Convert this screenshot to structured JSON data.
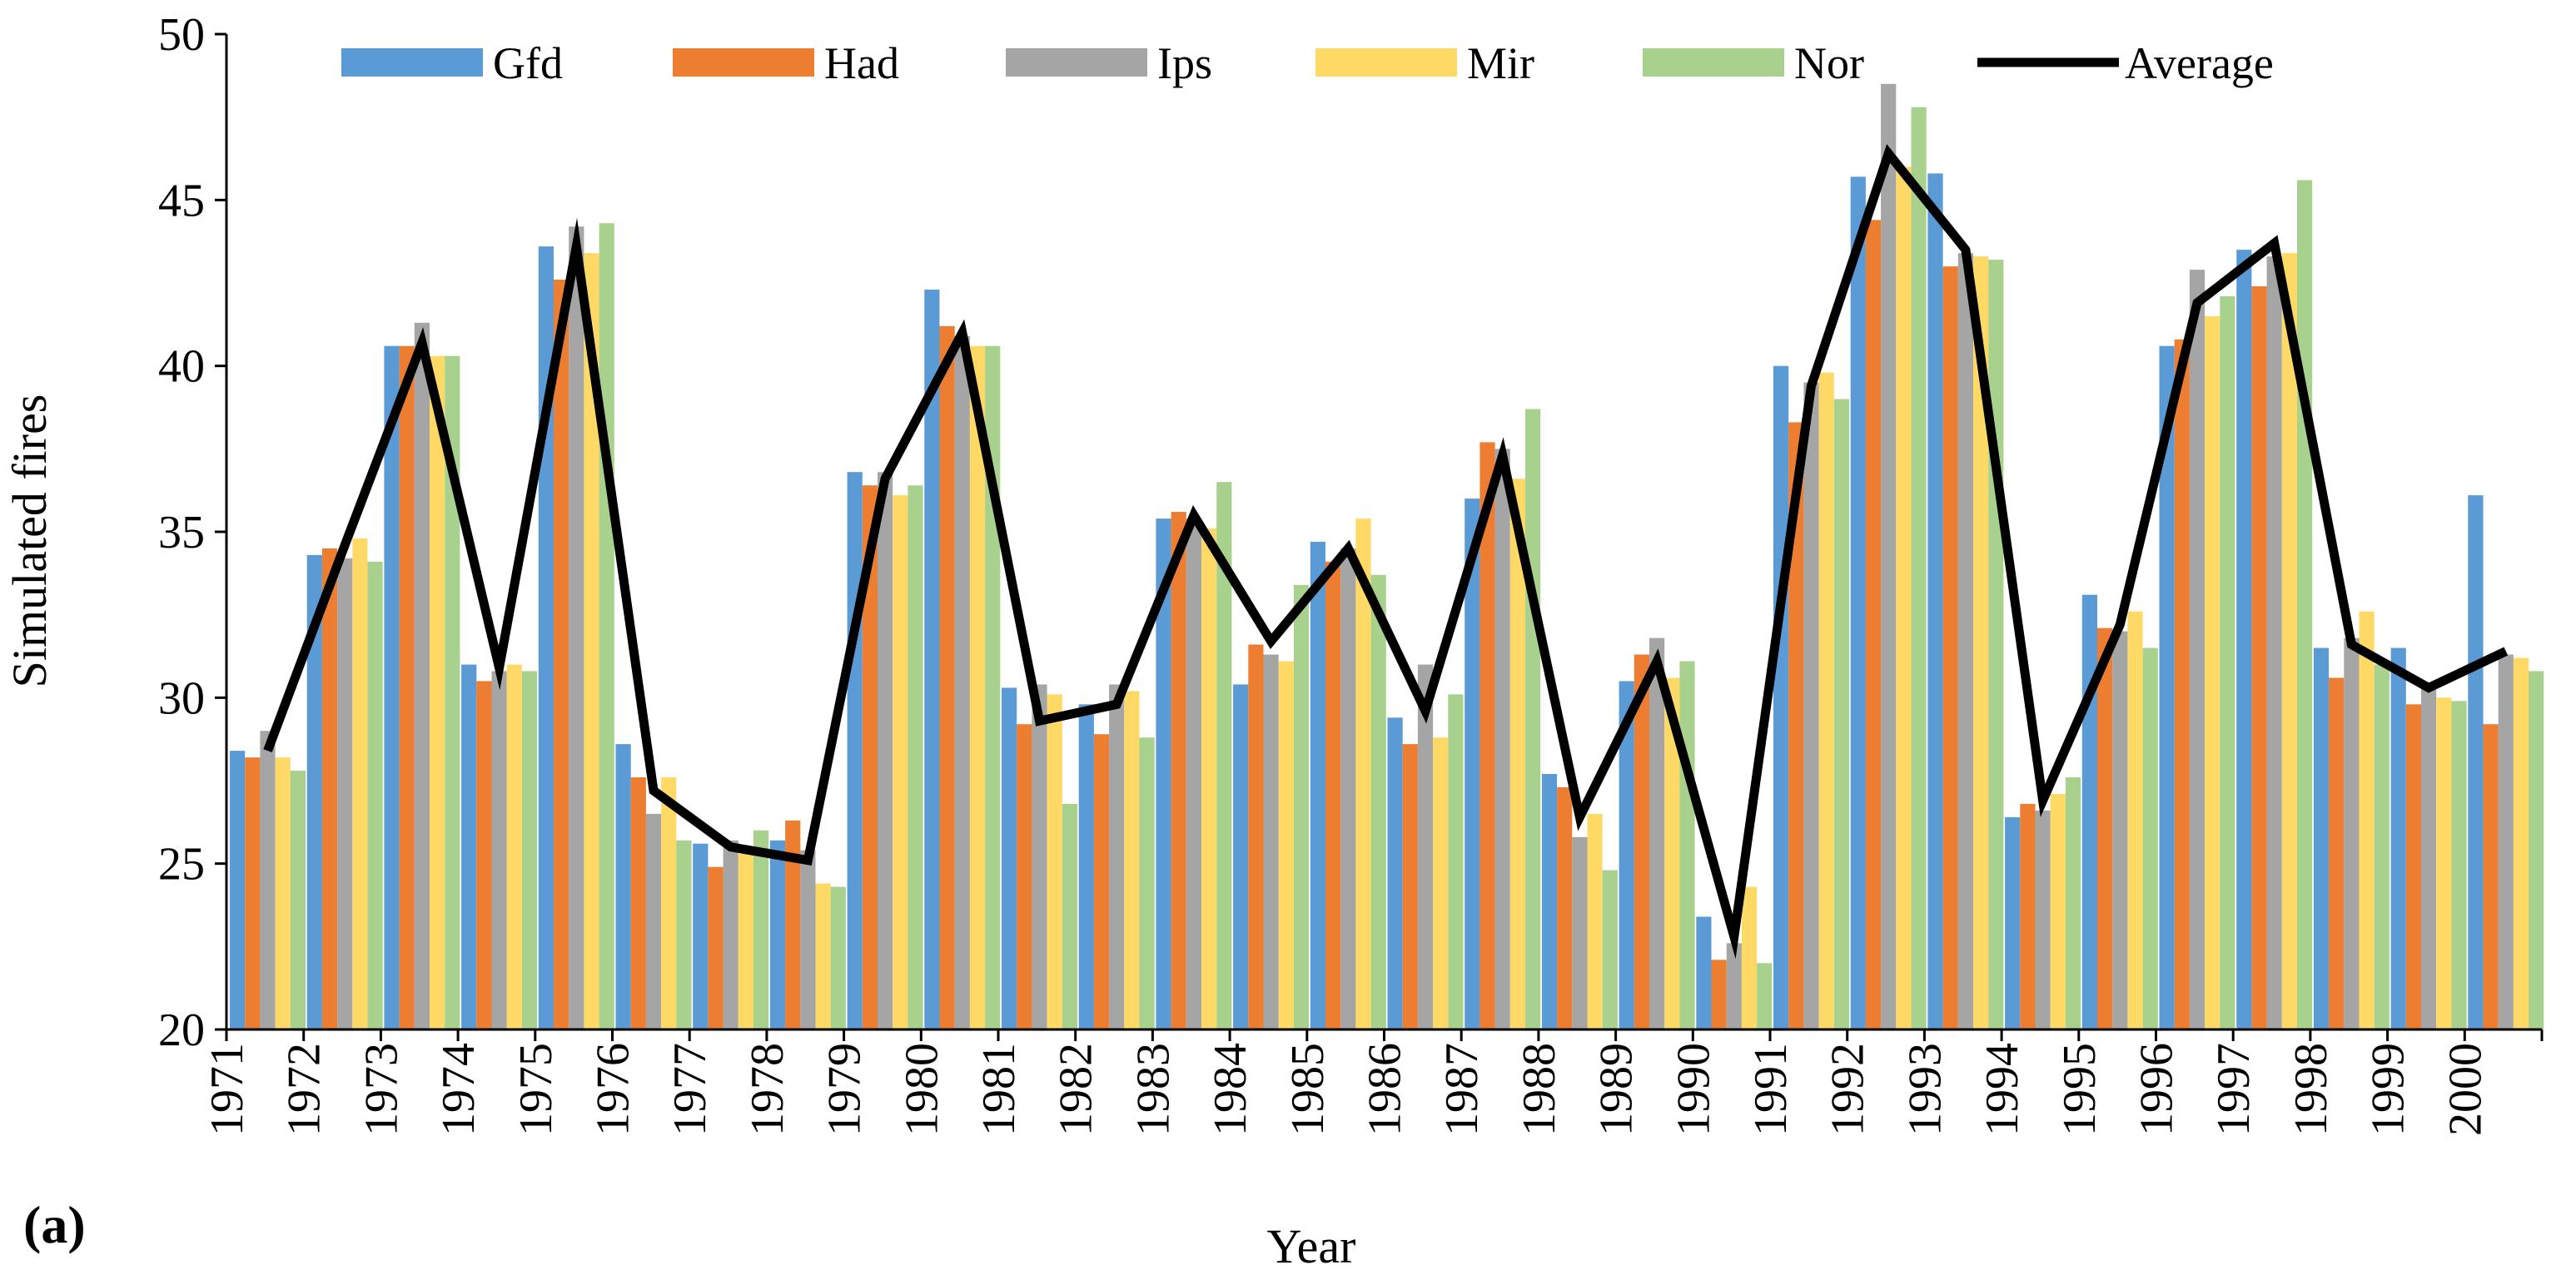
{
  "panel_label": "(a)",
  "chart_data": {
    "type": "bar",
    "title": "",
    "xlabel": "Year",
    "ylabel": "Simulated fires",
    "ylim": [
      20,
      50
    ],
    "yticks": [
      20,
      25,
      30,
      35,
      40,
      45,
      50
    ],
    "grid": false,
    "legend_position": "top",
    "categories": [
      "1971",
      "1972",
      "1973",
      "1974",
      "1975",
      "1976",
      "1977",
      "1978",
      "1979",
      "1980",
      "1981",
      "1982",
      "1983",
      "1984",
      "1985",
      "1986",
      "1987",
      "1988",
      "1989",
      "1990",
      "1991",
      "1992",
      "1993",
      "1994",
      "1995",
      "1996",
      "1997",
      "1998",
      "1999",
      "2000"
    ],
    "series": [
      {
        "name": "Gfd",
        "kind": "bar",
        "color": "#5B9BD5",
        "values": [
          28.4,
          34.3,
          40.6,
          31.0,
          43.6,
          28.6,
          25.6,
          25.7,
          36.8,
          42.3,
          30.3,
          29.8,
          35.4,
          30.4,
          34.7,
          29.4,
          36.0,
          27.7,
          30.5,
          23.4,
          40.0,
          45.7,
          45.8,
          26.4,
          33.1,
          40.6,
          43.5,
          31.5,
          31.5,
          36.1
        ]
      },
      {
        "name": "Had",
        "kind": "bar",
        "color": "#ED7D31",
        "values": [
          28.2,
          34.5,
          40.6,
          30.5,
          42.6,
          27.6,
          24.9,
          26.3,
          36.4,
          41.2,
          29.2,
          28.9,
          35.6,
          31.6,
          34.1,
          28.6,
          37.7,
          27.3,
          31.3,
          22.1,
          38.3,
          44.4,
          43.0,
          26.8,
          32.1,
          40.8,
          42.4,
          30.6,
          29.8,
          29.2
        ]
      },
      {
        "name": "Ips",
        "kind": "bar",
        "color": "#A5A5A5",
        "values": [
          29.0,
          34.2,
          41.3,
          30.8,
          44.2,
          26.5,
          25.7,
          25.4,
          36.8,
          40.9,
          30.4,
          30.4,
          35.4,
          31.3,
          34.5,
          31.0,
          37.5,
          25.8,
          31.8,
          22.6,
          39.5,
          48.5,
          43.4,
          26.6,
          32.0,
          42.9,
          43.3,
          31.8,
          30.3,
          31.3
        ]
      },
      {
        "name": "Mir",
        "kind": "bar",
        "color": "#FFD966",
        "values": [
          28.2,
          34.8,
          40.3,
          31.0,
          43.4,
          27.6,
          25.3,
          24.4,
          36.1,
          40.6,
          30.1,
          30.2,
          35.1,
          31.1,
          35.4,
          28.8,
          36.6,
          26.5,
          30.6,
          24.3,
          39.8,
          46.0,
          43.3,
          27.1,
          32.6,
          41.5,
          43.4,
          32.6,
          30.0,
          31.2
        ]
      },
      {
        "name": "Nor",
        "kind": "bar",
        "color": "#A9D18E",
        "values": [
          27.8,
          34.1,
          40.3,
          30.8,
          44.3,
          25.7,
          26.0,
          24.3,
          36.4,
          40.6,
          26.8,
          28.8,
          36.5,
          33.4,
          33.7,
          30.1,
          38.7,
          24.8,
          31.1,
          22.0,
          39.0,
          47.8,
          43.2,
          27.6,
          31.5,
          42.1,
          45.6,
          31.0,
          29.9,
          30.8
        ]
      },
      {
        "name": "Average",
        "kind": "line",
        "color": "#000000",
        "values": [
          28.4,
          34.6,
          40.7,
          30.9,
          43.6,
          27.2,
          25.5,
          25.1,
          36.6,
          41.0,
          29.3,
          29.8,
          35.5,
          31.7,
          34.5,
          29.6,
          37.3,
          26.4,
          31.1,
          22.8,
          39.4,
          46.4,
          43.5,
          26.9,
          32.2,
          41.9,
          43.7,
          31.6,
          30.3,
          31.4
        ]
      }
    ]
  }
}
